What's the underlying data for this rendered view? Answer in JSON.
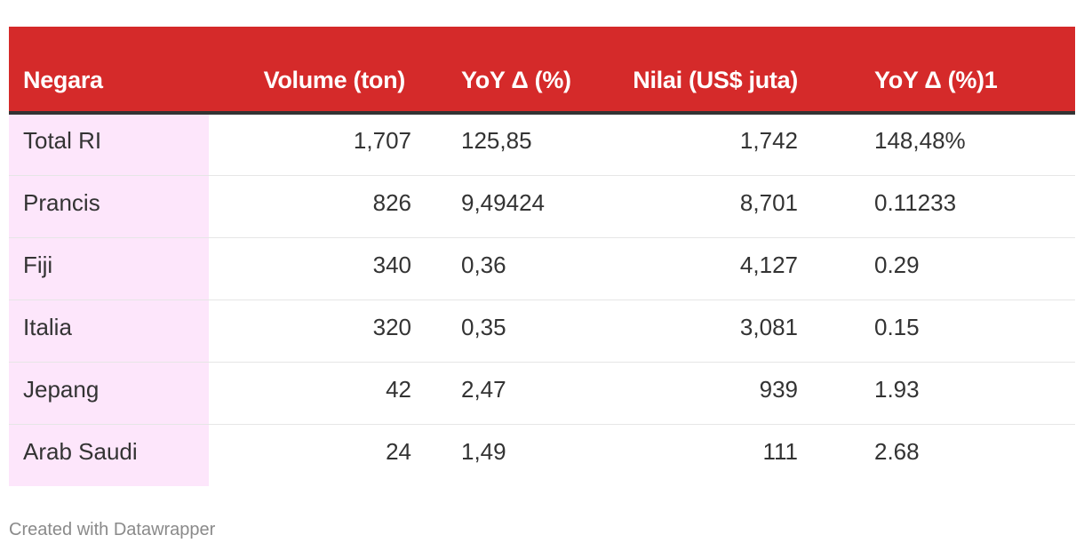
{
  "chart_data": {
    "type": "table",
    "columns": [
      "Negara",
      "Volume (ton)",
      "YoY Δ (%)",
      "Nilai (US$ juta)",
      "YoY Δ (%)1"
    ],
    "rows": [
      [
        "Total RI",
        "1,707",
        "125,85",
        "1,742",
        "148,48%"
      ],
      [
        "Prancis",
        "826",
        "9,49424",
        "8,701",
        "0.11233"
      ],
      [
        "Fiji",
        "340",
        "0,36",
        "4,127",
        "0.29"
      ],
      [
        "Italia",
        "320",
        "0,35",
        "3,081",
        "0.15"
      ],
      [
        "Jepang",
        "42",
        "2,47",
        "939",
        "1.93"
      ],
      [
        "Arab Saudi",
        "24",
        "1,49",
        "111",
        "2.68"
      ]
    ],
    "colors": {
      "header_bg": "#d52a2a",
      "header_text": "#ffffff",
      "highlight_column": "#fde6fb"
    }
  },
  "footer": {
    "credit": "Created with Datawrapper"
  }
}
